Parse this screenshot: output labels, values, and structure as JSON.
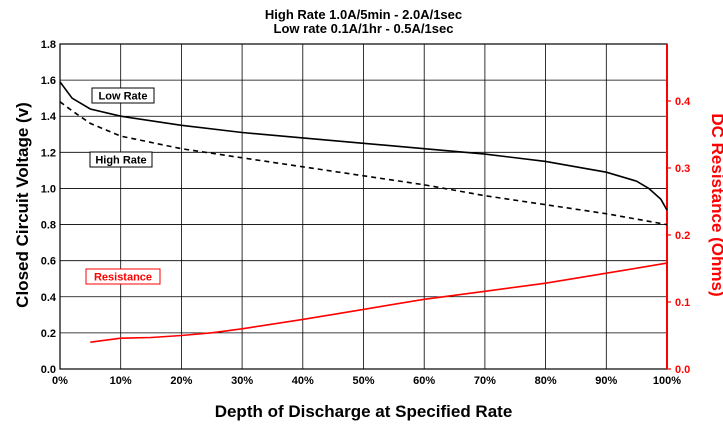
{
  "chart_data": {
    "type": "line",
    "title": "High Rate 1.0A/5min - 2.0A/1sec",
    "subtitle": "Low rate 0.1A/1hr - 0.5A/1sec",
    "xlabel": "Depth of Discharge at Specified Rate",
    "ylabel_left": "Closed Circuit Voltage (v)",
    "ylabel_right": "DC Resistance (Ohms)",
    "x_ticks": [
      "0%",
      "10%",
      "20%",
      "30%",
      "40%",
      "50%",
      "60%",
      "70%",
      "80%",
      "90%",
      "100%"
    ],
    "y_left_ticks": [
      "0.0",
      "0.2",
      "0.4",
      "0.6",
      "0.8",
      "1.0",
      "1.2",
      "1.4",
      "1.6",
      "1.8"
    ],
    "y_right_ticks": [
      "0.0",
      "0.1",
      "0.2",
      "0.3",
      "0.4"
    ],
    "xlim": [
      0,
      100
    ],
    "ylim_left": [
      0,
      1.8
    ],
    "ylim_right": [
      0,
      0.485
    ],
    "grid": true,
    "colors": {
      "voltage": "#000000",
      "resistance": "#ff0000"
    },
    "series": [
      {
        "name": "Low Rate",
        "axis": "left",
        "style": "solid",
        "color": "#000000",
        "x": [
          0,
          2,
          5,
          10,
          20,
          30,
          40,
          50,
          60,
          70,
          80,
          85,
          90,
          95,
          97,
          99,
          100
        ],
        "y": [
          1.59,
          1.5,
          1.44,
          1.4,
          1.35,
          1.31,
          1.28,
          1.25,
          1.22,
          1.19,
          1.15,
          1.12,
          1.09,
          1.04,
          1.0,
          0.94,
          0.88
        ]
      },
      {
        "name": "High Rate",
        "axis": "left",
        "style": "dashed",
        "color": "#000000",
        "x": [
          0,
          2,
          5,
          10,
          20,
          30,
          40,
          50,
          60,
          70,
          80,
          90,
          95,
          100
        ],
        "y": [
          1.48,
          1.43,
          1.36,
          1.29,
          1.22,
          1.17,
          1.12,
          1.07,
          1.02,
          0.96,
          0.91,
          0.86,
          0.83,
          0.8
        ]
      },
      {
        "name": "Resistance",
        "axis": "right",
        "style": "solid",
        "color": "#ff0000",
        "x": [
          5,
          10,
          15,
          20,
          25,
          30,
          40,
          50,
          60,
          70,
          80,
          90,
          100
        ],
        "y": [
          0.04,
          0.046,
          0.047,
          0.05,
          0.054,
          0.06,
          0.074,
          0.089,
          0.104,
          0.116,
          0.128,
          0.143,
          0.158
        ]
      }
    ],
    "annotations": [
      {
        "text": "Low Rate",
        "series": "Low Rate"
      },
      {
        "text": "High Rate",
        "series": "High Rate"
      },
      {
        "text": "Resistance",
        "series": "Resistance"
      }
    ]
  }
}
